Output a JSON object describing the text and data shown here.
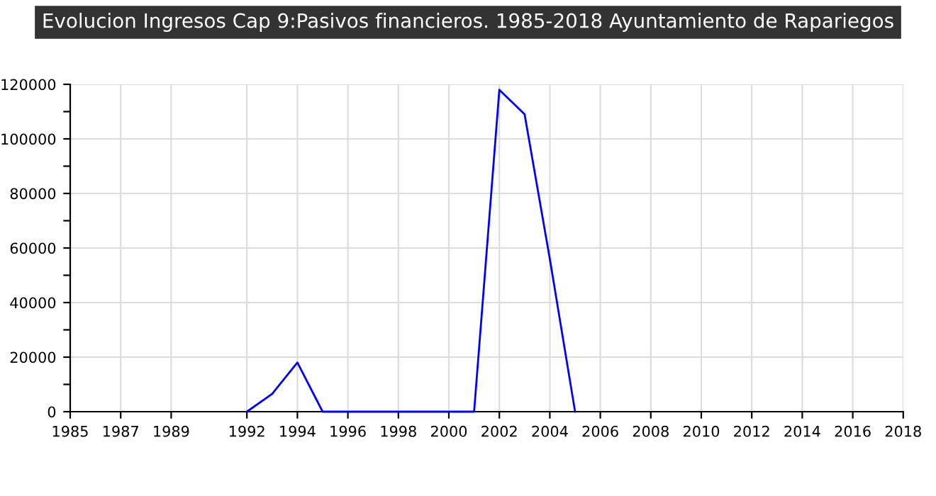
{
  "chart_data": {
    "type": "line",
    "title": "Evolucion Ingresos Cap 9:Pasivos financieros. 1985-2018 Ayuntamiento de Rapariegos",
    "series": [
      {
        "color": "#0000ff",
        "x": [
          1992,
          1993,
          1994,
          1995,
          1996,
          1997,
          1998,
          1999,
          2000,
          2001,
          2002,
          2003,
          2004,
          2005
        ],
        "values": [
          0,
          6500,
          18000,
          0,
          0,
          0,
          0,
          0,
          0,
          0,
          118000,
          109000,
          56000,
          0
        ]
      }
    ],
    "xlim": [
      1985,
      2018
    ],
    "xticks": [
      1985,
      1987,
      1989,
      1992,
      1994,
      1996,
      1998,
      2000,
      2002,
      2004,
      2006,
      2008,
      2010,
      2012,
      2014,
      2016,
      2018
    ],
    "ylim": [
      0,
      120000
    ],
    "yticks": [
      0,
      {
        "value": 10000,
        "label": null
      },
      20000,
      {
        "value": 30000,
        "label": null
      },
      40000,
      {
        "value": 50000,
        "label": null
      },
      60000,
      {
        "value": 70000,
        "label": null
      },
      80000,
      {
        "value": 90000,
        "label": null
      },
      100000,
      {
        "value": 110000,
        "label": null
      },
      120000
    ],
    "grid": true,
    "marker": "none",
    "line_style": "solid"
  }
}
